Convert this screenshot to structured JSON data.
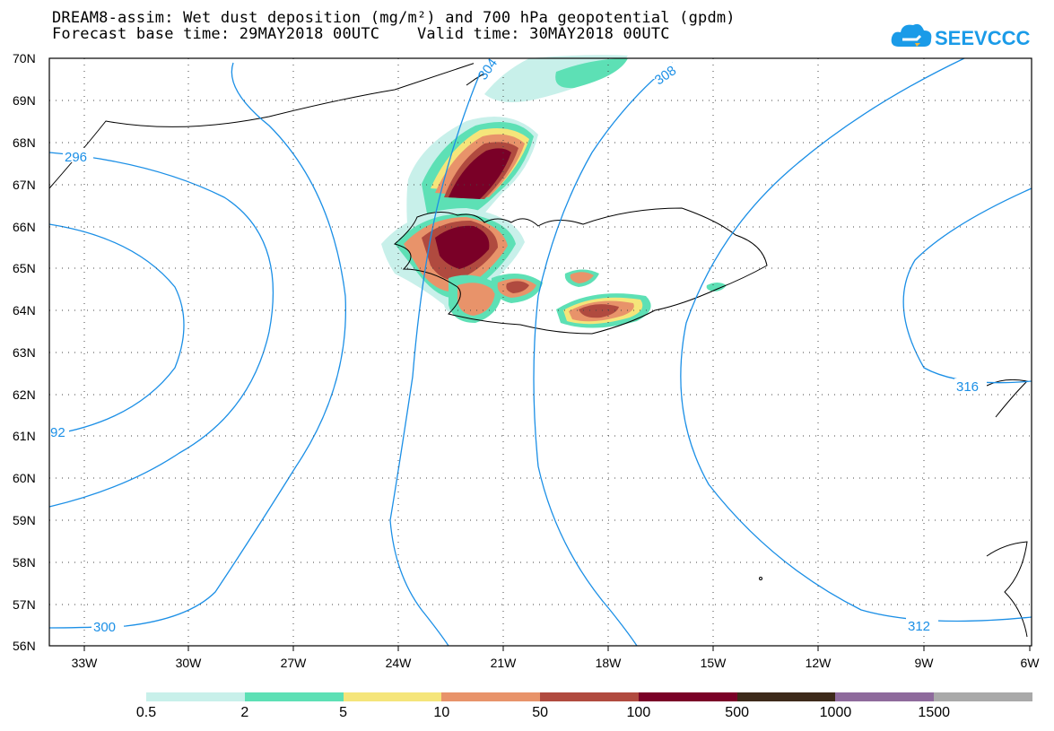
{
  "title": {
    "line1": "DREAM8-assim: Wet dust deposition (mg/m²) and 700 hPa geopotential (gpdm)",
    "line2": "Forecast base time: 29MAY2018 00UTC    Valid time: 30MAY2018 00UTC"
  },
  "logo": {
    "text": "SEEVCCC",
    "icon": "cloud-logo-icon",
    "color": "#1a9be8"
  },
  "map": {
    "lat_labels": [
      "70N",
      "69N",
      "68N",
      "67N",
      "66N",
      "65N",
      "64N",
      "63N",
      "62N",
      "61N",
      "60N",
      "59N",
      "58N",
      "57N",
      "56N"
    ],
    "lon_labels": [
      "33W",
      "30W",
      "27W",
      "24W",
      "21W",
      "18W",
      "15W",
      "12W",
      "9W",
      "6W"
    ],
    "contour_labels": [
      "304",
      "308",
      "296",
      "92",
      "300",
      "316",
      "312"
    ],
    "contour_color": "#1b8fe6"
  },
  "legend": {
    "colors": [
      "#c8f0ea",
      "#5de0b5",
      "#f5e57a",
      "#e8936a",
      "#b04a3f",
      "#7a0027",
      "#3d2a1a",
      "#8e6a9c",
      "#a9a9a9"
    ],
    "labels": [
      "0.5",
      "2",
      "5",
      "10",
      "50",
      "100",
      "500",
      "1000",
      "1500"
    ]
  }
}
